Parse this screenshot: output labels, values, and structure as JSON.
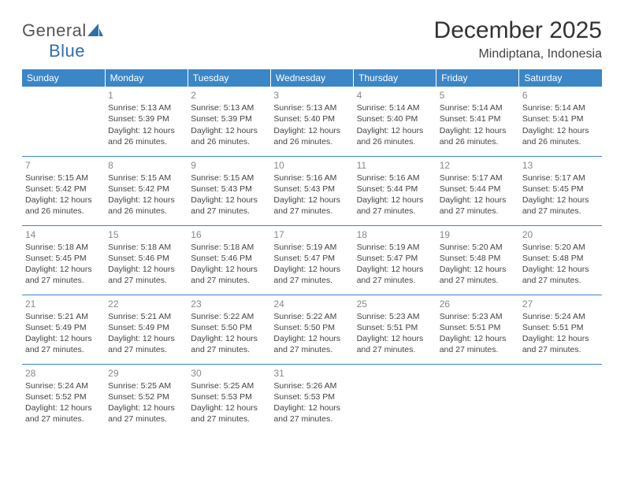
{
  "logo": {
    "part1": "General",
    "part2": "Blue"
  },
  "title": "December 2025",
  "location": "Mindiptana, Indonesia",
  "colors": {
    "header_bg": "#3b86c6",
    "header_text": "#ffffff",
    "border": "#3b86c6",
    "daynum": "#888888",
    "body_text": "#444444",
    "logo_gray": "#555555",
    "logo_blue": "#2f6fa8"
  },
  "weekdays": [
    "Sunday",
    "Monday",
    "Tuesday",
    "Wednesday",
    "Thursday",
    "Friday",
    "Saturday"
  ],
  "weeks": [
    [
      null,
      {
        "d": "1",
        "sr": "5:13 AM",
        "ss": "5:39 PM",
        "dl": "12 hours and 26 minutes."
      },
      {
        "d": "2",
        "sr": "5:13 AM",
        "ss": "5:39 PM",
        "dl": "12 hours and 26 minutes."
      },
      {
        "d": "3",
        "sr": "5:13 AM",
        "ss": "5:40 PM",
        "dl": "12 hours and 26 minutes."
      },
      {
        "d": "4",
        "sr": "5:14 AM",
        "ss": "5:40 PM",
        "dl": "12 hours and 26 minutes."
      },
      {
        "d": "5",
        "sr": "5:14 AM",
        "ss": "5:41 PM",
        "dl": "12 hours and 26 minutes."
      },
      {
        "d": "6",
        "sr": "5:14 AM",
        "ss": "5:41 PM",
        "dl": "12 hours and 26 minutes."
      }
    ],
    [
      {
        "d": "7",
        "sr": "5:15 AM",
        "ss": "5:42 PM",
        "dl": "12 hours and 26 minutes."
      },
      {
        "d": "8",
        "sr": "5:15 AM",
        "ss": "5:42 PM",
        "dl": "12 hours and 26 minutes."
      },
      {
        "d": "9",
        "sr": "5:15 AM",
        "ss": "5:43 PM",
        "dl": "12 hours and 27 minutes."
      },
      {
        "d": "10",
        "sr": "5:16 AM",
        "ss": "5:43 PM",
        "dl": "12 hours and 27 minutes."
      },
      {
        "d": "11",
        "sr": "5:16 AM",
        "ss": "5:44 PM",
        "dl": "12 hours and 27 minutes."
      },
      {
        "d": "12",
        "sr": "5:17 AM",
        "ss": "5:44 PM",
        "dl": "12 hours and 27 minutes."
      },
      {
        "d": "13",
        "sr": "5:17 AM",
        "ss": "5:45 PM",
        "dl": "12 hours and 27 minutes."
      }
    ],
    [
      {
        "d": "14",
        "sr": "5:18 AM",
        "ss": "5:45 PM",
        "dl": "12 hours and 27 minutes."
      },
      {
        "d": "15",
        "sr": "5:18 AM",
        "ss": "5:46 PM",
        "dl": "12 hours and 27 minutes."
      },
      {
        "d": "16",
        "sr": "5:18 AM",
        "ss": "5:46 PM",
        "dl": "12 hours and 27 minutes."
      },
      {
        "d": "17",
        "sr": "5:19 AM",
        "ss": "5:47 PM",
        "dl": "12 hours and 27 minutes."
      },
      {
        "d": "18",
        "sr": "5:19 AM",
        "ss": "5:47 PM",
        "dl": "12 hours and 27 minutes."
      },
      {
        "d": "19",
        "sr": "5:20 AM",
        "ss": "5:48 PM",
        "dl": "12 hours and 27 minutes."
      },
      {
        "d": "20",
        "sr": "5:20 AM",
        "ss": "5:48 PM",
        "dl": "12 hours and 27 minutes."
      }
    ],
    [
      {
        "d": "21",
        "sr": "5:21 AM",
        "ss": "5:49 PM",
        "dl": "12 hours and 27 minutes."
      },
      {
        "d": "22",
        "sr": "5:21 AM",
        "ss": "5:49 PM",
        "dl": "12 hours and 27 minutes."
      },
      {
        "d": "23",
        "sr": "5:22 AM",
        "ss": "5:50 PM",
        "dl": "12 hours and 27 minutes."
      },
      {
        "d": "24",
        "sr": "5:22 AM",
        "ss": "5:50 PM",
        "dl": "12 hours and 27 minutes."
      },
      {
        "d": "25",
        "sr": "5:23 AM",
        "ss": "5:51 PM",
        "dl": "12 hours and 27 minutes."
      },
      {
        "d": "26",
        "sr": "5:23 AM",
        "ss": "5:51 PM",
        "dl": "12 hours and 27 minutes."
      },
      {
        "d": "27",
        "sr": "5:24 AM",
        "ss": "5:51 PM",
        "dl": "12 hours and 27 minutes."
      }
    ],
    [
      {
        "d": "28",
        "sr": "5:24 AM",
        "ss": "5:52 PM",
        "dl": "12 hours and 27 minutes."
      },
      {
        "d": "29",
        "sr": "5:25 AM",
        "ss": "5:52 PM",
        "dl": "12 hours and 27 minutes."
      },
      {
        "d": "30",
        "sr": "5:25 AM",
        "ss": "5:53 PM",
        "dl": "12 hours and 27 minutes."
      },
      {
        "d": "31",
        "sr": "5:26 AM",
        "ss": "5:53 PM",
        "dl": "12 hours and 27 minutes."
      },
      null,
      null,
      null
    ]
  ],
  "labels": {
    "sunrise": "Sunrise:",
    "sunset": "Sunset:",
    "daylight": "Daylight:"
  }
}
